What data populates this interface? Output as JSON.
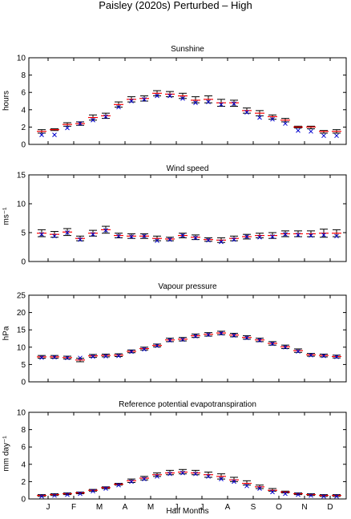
{
  "title": "Paisley (2020s) Perturbed – High",
  "x_axis": {
    "label": "Half Months",
    "month_labels": [
      "J",
      "F",
      "M",
      "A",
      "M",
      "J",
      "J",
      "A",
      "S",
      "O",
      "N",
      "D"
    ]
  },
  "colors": {
    "range": "#000000",
    "mean_line": "#ff0000",
    "observed_marker": "#0000cc"
  },
  "legend_notes": "Black bars: range of perturbed values; red dash: perturbed value; blue x: baseline/observed",
  "chart_data": [
    {
      "type": "scatter",
      "title": "Sunshine",
      "ylabel": "hours",
      "ylim": [
        0,
        10
      ],
      "yticks": [
        0,
        2,
        4,
        6,
        8,
        10
      ],
      "x": [
        1,
        2,
        3,
        4,
        5,
        6,
        7,
        8,
        9,
        10,
        11,
        12,
        13,
        14,
        15,
        16,
        17,
        18,
        19,
        20,
        21,
        22,
        23,
        24
      ],
      "series": [
        {
          "role": "perturbed",
          "values": [
            1.5,
            1.7,
            2.3,
            2.4,
            3.1,
            3.3,
            4.6,
            5.2,
            5.3,
            5.9,
            5.8,
            5.6,
            5.1,
            5.2,
            4.8,
            4.8,
            3.9,
            3.6,
            3.2,
            2.8,
            2.0,
            2.0,
            1.5,
            1.5
          ]
        },
        {
          "role": "upper",
          "values": [
            1.7,
            1.8,
            2.5,
            2.6,
            3.4,
            3.6,
            4.9,
            5.5,
            5.6,
            6.2,
            6.1,
            5.9,
            5.5,
            5.6,
            5.2,
            5.1,
            4.2,
            3.9,
            3.4,
            3.0,
            2.1,
            2.1,
            1.6,
            1.7
          ]
        },
        {
          "role": "lower",
          "values": [
            1.3,
            1.6,
            2.1,
            2.2,
            2.8,
            3.0,
            4.3,
            4.9,
            5.0,
            5.6,
            5.5,
            5.3,
            4.8,
            4.8,
            4.4,
            4.4,
            3.6,
            3.3,
            2.9,
            2.6,
            1.9,
            1.8,
            1.3,
            1.3
          ]
        },
        {
          "role": "observed",
          "values": [
            1.1,
            1.1,
            1.9,
            2.4,
            2.8,
            3.2,
            4.3,
            5.0,
            5.2,
            5.6,
            5.6,
            5.3,
            4.8,
            4.9,
            4.6,
            4.7,
            3.7,
            3.1,
            2.9,
            2.4,
            1.6,
            1.5,
            1.0,
            1.0
          ]
        }
      ]
    },
    {
      "type": "scatter",
      "title": "Wind speed",
      "ylabel": "ms⁻¹",
      "ylim": [
        0,
        15
      ],
      "yticks": [
        0,
        5,
        10,
        15
      ],
      "x": [
        1,
        2,
        3,
        4,
        5,
        6,
        7,
        8,
        9,
        10,
        11,
        12,
        13,
        14,
        15,
        16,
        17,
        18,
        19,
        20,
        21,
        22,
        23,
        24
      ],
      "series": [
        {
          "role": "perturbed",
          "values": [
            4.9,
            4.7,
            5.1,
            4.0,
            4.9,
            5.5,
            4.5,
            4.4,
            4.4,
            4.0,
            3.9,
            4.5,
            4.2,
            3.8,
            3.7,
            4.0,
            4.3,
            4.5,
            4.5,
            4.8,
            4.8,
            4.8,
            4.9,
            4.9
          ]
        },
        {
          "role": "upper",
          "values": [
            5.5,
            5.2,
            5.7,
            4.4,
            5.4,
            6.1,
            4.9,
            4.8,
            4.8,
            4.4,
            4.2,
            4.9,
            4.6,
            4.1,
            4.1,
            4.4,
            4.7,
            4.9,
            5.0,
            5.3,
            5.3,
            5.3,
            5.6,
            5.5
          ]
        },
        {
          "role": "lower",
          "values": [
            4.3,
            4.2,
            4.5,
            3.6,
            4.4,
            4.9,
            4.1,
            4.0,
            4.0,
            3.6,
            3.6,
            4.1,
            3.8,
            3.5,
            3.3,
            3.6,
            3.9,
            4.1,
            4.0,
            4.3,
            4.3,
            4.3,
            4.2,
            4.3
          ]
        },
        {
          "role": "observed",
          "values": [
            4.7,
            4.4,
            5.0,
            3.8,
            4.7,
            5.4,
            4.4,
            4.3,
            4.4,
            3.6,
            3.8,
            4.5,
            4.1,
            3.7,
            3.4,
            3.8,
            4.3,
            4.2,
            4.3,
            4.7,
            4.6,
            4.5,
            4.6,
            4.4
          ]
        }
      ]
    },
    {
      "type": "scatter",
      "title": "Vapour pressure",
      "ylabel": "hPa",
      "ylim": [
        0,
        25
      ],
      "yticks": [
        0,
        5,
        10,
        15,
        20,
        25
      ],
      "x": [
        1,
        2,
        3,
        4,
        5,
        6,
        7,
        8,
        9,
        10,
        11,
        12,
        13,
        14,
        15,
        16,
        17,
        18,
        19,
        20,
        21,
        22,
        23,
        24
      ],
      "series": [
        {
          "role": "perturbed",
          "values": [
            7.2,
            7.2,
            7.0,
            6.3,
            7.5,
            7.6,
            7.7,
            8.8,
            9.6,
            10.5,
            12.1,
            12.3,
            13.3,
            13.7,
            14.1,
            13.5,
            12.8,
            12.1,
            11.1,
            10.1,
            9.0,
            7.8,
            7.6,
            7.3
          ]
        },
        {
          "role": "upper",
          "values": [
            7.6,
            7.6,
            7.4,
            6.8,
            7.9,
            8.0,
            8.1,
            9.2,
            10.0,
            10.9,
            12.6,
            12.8,
            13.8,
            14.2,
            14.6,
            14.0,
            13.3,
            12.6,
            11.6,
            10.6,
            9.5,
            8.2,
            8.0,
            7.7
          ]
        },
        {
          "role": "lower",
          "values": [
            6.8,
            6.8,
            6.6,
            5.8,
            7.1,
            7.2,
            7.3,
            8.4,
            9.2,
            10.1,
            11.6,
            11.8,
            12.8,
            13.2,
            13.6,
            13.0,
            12.3,
            11.6,
            10.6,
            9.6,
            8.5,
            7.4,
            7.2,
            6.9
          ]
        },
        {
          "role": "observed",
          "values": [
            7.0,
            7.1,
            6.9,
            6.9,
            7.3,
            7.4,
            7.5,
            8.7,
            9.4,
            10.4,
            12.0,
            12.2,
            13.2,
            13.6,
            14.0,
            13.4,
            12.7,
            12.0,
            11.0,
            10.0,
            8.8,
            7.7,
            7.5,
            7.2
          ]
        }
      ]
    },
    {
      "type": "scatter",
      "title": "Reference potential evapotranspiration",
      "ylabel": "mm day⁻¹",
      "ylim": [
        0,
        10
      ],
      "yticks": [
        0,
        2,
        4,
        6,
        8,
        10
      ],
      "x": [
        1,
        2,
        3,
        4,
        5,
        6,
        7,
        8,
        9,
        10,
        11,
        12,
        13,
        14,
        15,
        16,
        17,
        18,
        19,
        20,
        21,
        22,
        23,
        24
      ],
      "series": [
        {
          "role": "perturbed",
          "values": [
            0.4,
            0.5,
            0.6,
            0.7,
            1.0,
            1.3,
            1.7,
            2.1,
            2.4,
            2.8,
            3.0,
            3.1,
            3.0,
            2.8,
            2.6,
            2.2,
            1.8,
            1.4,
            1.0,
            0.8,
            0.6,
            0.5,
            0.4,
            0.4
          ]
        },
        {
          "role": "upper",
          "values": [
            0.5,
            0.6,
            0.7,
            0.8,
            1.1,
            1.4,
            1.8,
            2.3,
            2.6,
            3.0,
            3.3,
            3.4,
            3.3,
            3.1,
            2.9,
            2.5,
            2.1,
            1.6,
            1.2,
            0.9,
            0.7,
            0.6,
            0.5,
            0.5
          ]
        },
        {
          "role": "lower",
          "values": [
            0.3,
            0.4,
            0.5,
            0.6,
            0.9,
            1.2,
            1.6,
            1.9,
            2.2,
            2.6,
            2.8,
            2.9,
            2.8,
            2.5,
            2.3,
            2.0,
            1.6,
            1.2,
            0.9,
            0.7,
            0.5,
            0.4,
            0.3,
            0.3
          ]
        },
        {
          "role": "observed",
          "values": [
            0.3,
            0.4,
            0.5,
            0.6,
            0.9,
            1.2,
            1.6,
            2.0,
            2.3,
            2.6,
            2.9,
            3.0,
            2.9,
            2.6,
            2.3,
            2.0,
            1.5,
            1.2,
            0.8,
            0.6,
            0.5,
            0.4,
            0.3,
            0.3
          ]
        }
      ]
    }
  ]
}
